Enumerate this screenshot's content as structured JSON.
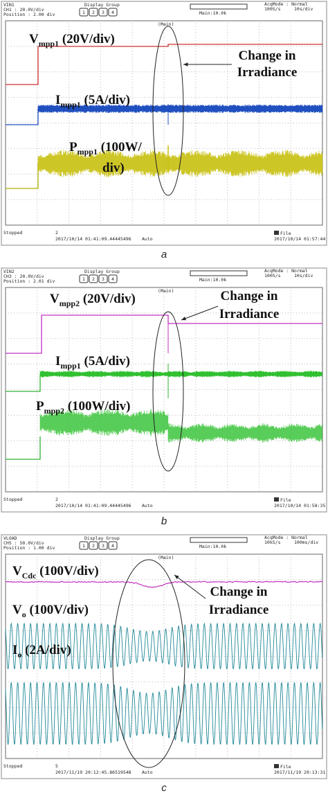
{
  "panels": [
    {
      "header": {
        "channel": "VIN1",
        "ch": "CH1 : 20.0V/div",
        "position": "Position : 2.00 div",
        "display_group": "Display Group",
        "buttons": [
          "1",
          "2",
          "3",
          "4"
        ],
        "main": "Main:10.0k",
        "zoom": "(Main)",
        "acq_mode": "AcqMode : Normal",
        "rate": "100S/s",
        "timebase": "10s/div"
      },
      "labels": [
        {
          "main": "V",
          "sub": "mpp1",
          "rest": " (20V/div)"
        },
        {
          "main": "I",
          "sub": "mpp1",
          "rest": " (5A/div)"
        },
        {
          "main": "P",
          "sub": "mpp1",
          "rest": " (100W/",
          "cont": "div)"
        }
      ],
      "note": [
        "Change in",
        "Irradiance"
      ],
      "footer": {
        "status": "Stopped",
        "count": "2",
        "start": "2017/10/14 01:41:09.44445496",
        "trigger": "Auto",
        "file": "File",
        "end": "2017/10/14 01:57:44"
      },
      "caption": "a"
    },
    {
      "header": {
        "channel": "VIN2",
        "ch": "CH3 : 20.0V/div",
        "position": "Position : 2.01 div",
        "display_group": "Display Group",
        "buttons": [
          "1",
          "2",
          "3",
          "4"
        ],
        "main": "Main:10.0k",
        "zoom": "(Main)",
        "acq_mode": "AcqMode : Normal",
        "rate": "100S/s",
        "timebase": "10s/div"
      },
      "labels": [
        {
          "main": "V",
          "sub": "mpp2",
          "rest": " (20V/div)"
        },
        {
          "main": "I",
          "sub": "mpp1",
          "rest": " (5A/div)"
        },
        {
          "main": "P",
          "sub": "mpp2",
          "rest": " (100W/div)"
        }
      ],
      "note": [
        "Change in",
        "Irradiance"
      ],
      "footer": {
        "status": "Stopped",
        "count": "2",
        "start": "2017/10/14 01:41:09.44445496",
        "trigger": "Auto",
        "file": "File",
        "end": "2017/10/14 01:58:35"
      },
      "caption": "b"
    },
    {
      "header": {
        "channel": "VLOAD",
        "ch": "CH5 : 50.0V/div",
        "position": "Position : 1.00 div",
        "display_group": "Display Group",
        "buttons": [
          "1",
          "2",
          "3",
          "4"
        ],
        "main": "Main:10.0k",
        "zoom": "(Main)",
        "acq_mode": "AcqMode : Normal",
        "rate": "10kS/s",
        "timebase": "100ms/div"
      },
      "labels": [
        {
          "main": "V",
          "sub": "Cdc",
          "rest": " (100V/div)"
        },
        {
          "main": "V",
          "sub": "o",
          "rest": " (100V/div)"
        },
        {
          "main": "I",
          "sub": "o",
          "rest": " (2A/div)"
        }
      ],
      "note": [
        "Change in",
        "Irradiance"
      ],
      "footer": {
        "status": "Stopped",
        "count": "5",
        "start": "2017/11/19 20:12:45.86519548",
        "trigger": "Auto",
        "file": "File",
        "end": "2017/11/19 20:13:31"
      },
      "caption": "c"
    }
  ]
}
